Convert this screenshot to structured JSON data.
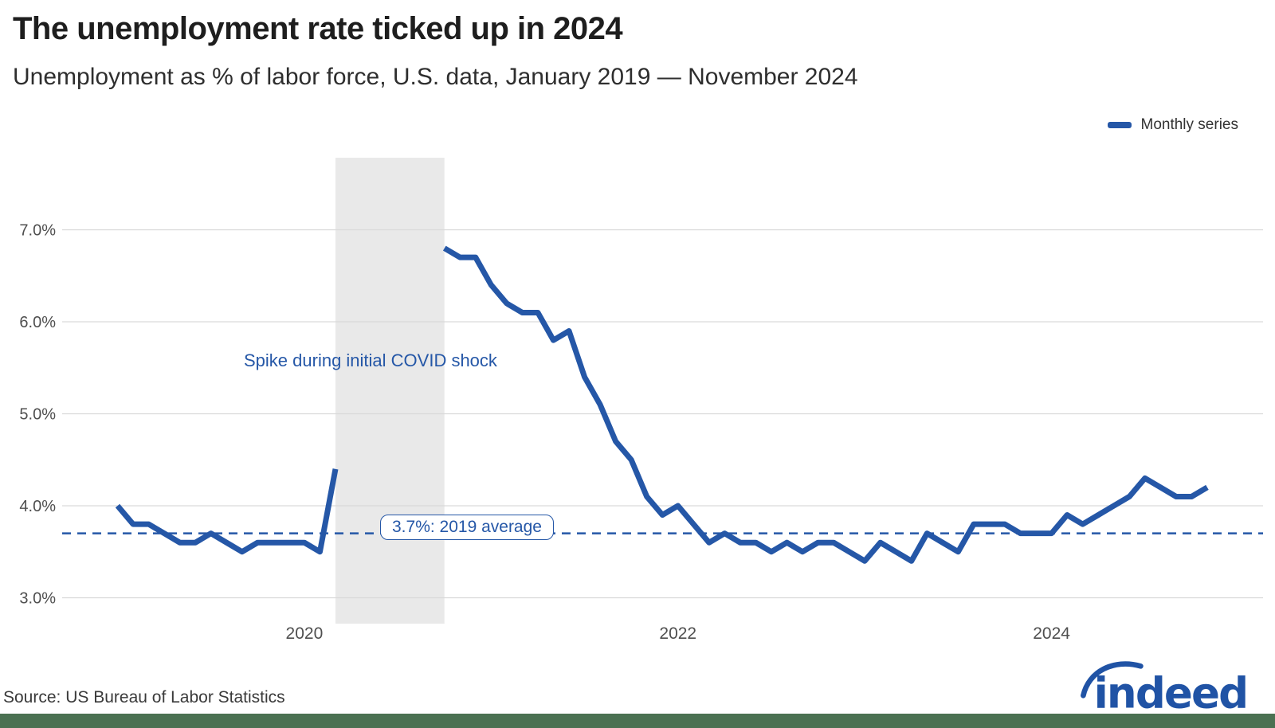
{
  "header": {
    "title": "The unemployment rate ticked up in 2024",
    "subtitle": "Unemployment as % of labor force, U.S. data, January 2019 — November 2024"
  },
  "legend": {
    "label": "Monthly series"
  },
  "annotations": {
    "covid_spike": "Spike during initial COVID shock",
    "average_label": "3.7%: 2019 average"
  },
  "footer": {
    "source": "Source: US Bureau of Labor Statistics",
    "logo_text": "indeed"
  },
  "colors": {
    "accent": "#2557a7",
    "band": "#e9e9e9",
    "gridline": "#d9d9d9",
    "axis_label": "#4f4f4f",
    "bottom_bar": "#4b7152",
    "logo_blue": "#2053a5"
  },
  "chart_data": {
    "type": "line",
    "title": "The unemployment rate ticked up in 2024",
    "subtitle": "Unemployment as % of labor force, U.S. data, January 2019 — November 2024",
    "xlabel": "",
    "ylabel": "Unemployment as % of labor force",
    "x_start_month": "2019-01",
    "x_end_month": "2024-11",
    "ylim_visible": [
      2.85,
      7.78
    ],
    "grid": "horizontal",
    "legend_position": "top-right",
    "y_ticks": [
      {
        "value": 3.0,
        "label": "3.0%"
      },
      {
        "value": 4.0,
        "label": "4.0%"
      },
      {
        "value": 5.0,
        "label": "5.0%"
      },
      {
        "value": 6.0,
        "label": "6.0%"
      },
      {
        "value": 7.0,
        "label": "7.0%"
      }
    ],
    "x_ticks": [
      {
        "month": "2020-01",
        "label": "2020"
      },
      {
        "month": "2022-01",
        "label": "2022"
      },
      {
        "month": "2024-01",
        "label": "2024"
      }
    ],
    "reference_line": {
      "value": 3.7,
      "label": "3.7%: 2019 average",
      "style": "dashed"
    },
    "shaded_region": {
      "start": "2020-03",
      "end": "2020-10",
      "label": "Spike during initial COVID shock"
    },
    "series": [
      {
        "name": "Monthly series",
        "note_nulls": "months above chart top are not drawn",
        "values": [
          4.0,
          3.8,
          3.8,
          3.7,
          3.6,
          3.6,
          3.7,
          3.6,
          3.5,
          3.6,
          3.6,
          3.6,
          3.6,
          3.5,
          4.4,
          null,
          null,
          null,
          null,
          null,
          null,
          6.8,
          6.7,
          6.7,
          6.4,
          6.2,
          6.1,
          6.1,
          5.8,
          5.9,
          5.4,
          5.1,
          4.7,
          4.5,
          4.1,
          3.9,
          4.0,
          3.8,
          3.6,
          3.7,
          3.6,
          3.6,
          3.5,
          3.6,
          3.5,
          3.6,
          3.6,
          3.5,
          3.4,
          3.6,
          3.5,
          3.4,
          3.7,
          3.6,
          3.5,
          3.8,
          3.8,
          3.8,
          3.7,
          3.7,
          3.7,
          3.9,
          3.8,
          3.9,
          4.0,
          4.1,
          4.3,
          4.2,
          4.1,
          4.1,
          4.2
        ]
      }
    ]
  }
}
